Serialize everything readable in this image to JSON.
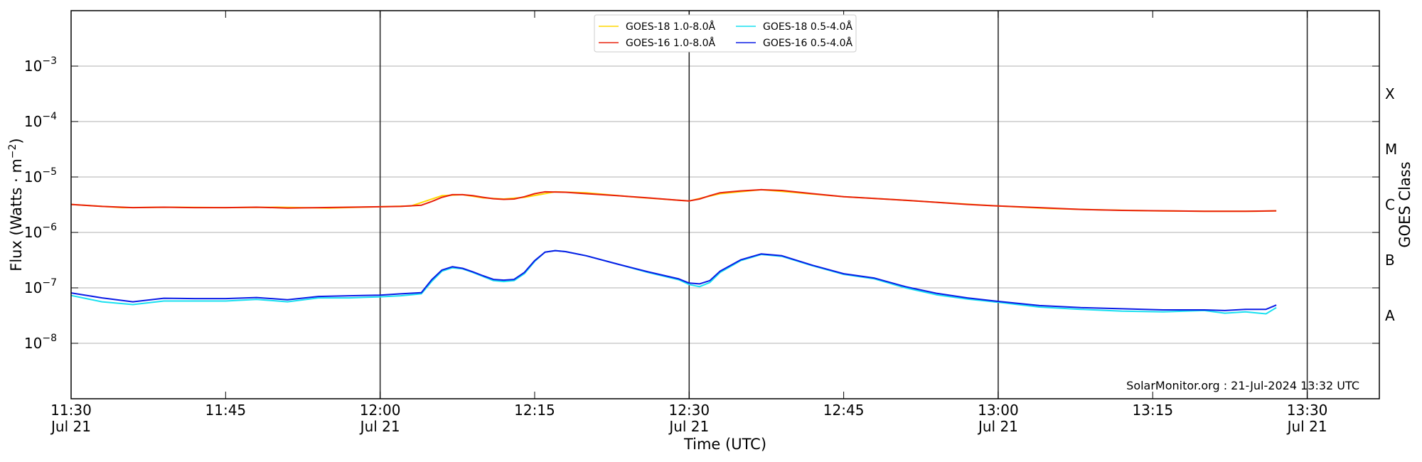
{
  "chart_data": {
    "type": "line",
    "title": "",
    "xlabel": "Time (UTC)",
    "ylabel": "Flux (Watts · m⁻²)",
    "y2label": "GOES Class",
    "yscale": "log",
    "ylim": [
      1e-09,
      0.01
    ],
    "xlim": [
      "2024-07-21 11:30",
      "2024-07-21 13:37"
    ],
    "grid": "horizontal at decades",
    "legend_position": "top-center",
    "credit": "SolarMonitor.org : 21-Jul-2024 13:32 UTC",
    "x_ticks": [
      {
        "time": "11:30",
        "line1": "11:30",
        "line2": "Jul 21"
      },
      {
        "time": "11:45",
        "line1": "11:45",
        "line2": ""
      },
      {
        "time": "12:00",
        "line1": "12:00",
        "line2": "Jul 21"
      },
      {
        "time": "12:15",
        "line1": "12:15",
        "line2": ""
      },
      {
        "time": "12:30",
        "line1": "12:30",
        "line2": "Jul 21"
      },
      {
        "time": "12:45",
        "line1": "12:45",
        "line2": ""
      },
      {
        "time": "13:00",
        "line1": "13:00",
        "line2": "Jul 21"
      },
      {
        "time": "13:15",
        "line1": "13:15",
        "line2": ""
      },
      {
        "time": "13:30",
        "line1": "13:30",
        "line2": "Jul 21"
      }
    ],
    "vertical_lines": [
      "12:00",
      "12:30",
      "13:00",
      "13:30"
    ],
    "y_ticks": [
      {
        "value": 0.001,
        "base": "10",
        "exp": "−3"
      },
      {
        "value": 0.0001,
        "base": "10",
        "exp": "−4"
      },
      {
        "value": 1e-05,
        "base": "10",
        "exp": "−5"
      },
      {
        "value": 1e-06,
        "base": "10",
        "exp": "−6"
      },
      {
        "value": 1e-07,
        "base": "10",
        "exp": "−7"
      },
      {
        "value": 1e-08,
        "base": "10",
        "exp": "−8"
      }
    ],
    "goes_classes": [
      {
        "label": "X",
        "value": 0.000316
      },
      {
        "label": "M",
        "value": 3.16e-05
      },
      {
        "label": "C",
        "value": 3.16e-06
      },
      {
        "label": "B",
        "value": 3.16e-07
      },
      {
        "label": "A",
        "value": 3.16e-08
      }
    ],
    "series": [
      {
        "name": "GOES-18 1.0-8.0Å",
        "color": "#FFD700",
        "x": [
          "11:30",
          "11:35",
          "11:40",
          "11:45",
          "11:50",
          "11:55",
          "12:00",
          "12:03",
          "12:06",
          "12:08",
          "12:10",
          "12:12",
          "12:14",
          "12:17",
          "12:20",
          "12:25",
          "12:30",
          "12:33",
          "12:37",
          "12:40",
          "12:45",
          "12:50",
          "12:55",
          "13:00",
          "13:05",
          "13:10",
          "13:15",
          "13:20",
          "13:25",
          "13:27"
        ],
        "values": [
          3.2e-06,
          2.8e-06,
          2.85e-06,
          2.8e-06,
          2.85e-06,
          2.75e-06,
          2.9e-06,
          3e-06,
          4.6e-06,
          4.8e-06,
          4.2e-06,
          4e-06,
          4.3e-06,
          5.4e-06,
          5.2e-06,
          4.3e-06,
          3.7e-06,
          5e-06,
          5.9e-06,
          5.3e-06,
          4.4e-06,
          3.9e-06,
          3.4e-06,
          3e-06,
          2.7e-06,
          2.55e-06,
          2.45e-06,
          2.4e-06,
          2.4e-06,
          2.45e-06
        ]
      },
      {
        "name": "GOES-16 1.0-8.0Å",
        "color": "#E8200C",
        "x": [
          "11:30",
          "11:33",
          "11:36",
          "11:39",
          "11:42",
          "11:45",
          "11:48",
          "11:51",
          "11:54",
          "11:57",
          "12:00",
          "12:02",
          "12:04",
          "12:05",
          "12:06",
          "12:07",
          "12:08",
          "12:09",
          "12:10",
          "12:11",
          "12:12",
          "12:13",
          "12:14",
          "12:15",
          "12:16",
          "12:18",
          "12:20",
          "12:23",
          "12:26",
          "12:29",
          "12:30",
          "12:31",
          "12:32",
          "12:33",
          "12:35",
          "12:37",
          "12:39",
          "12:42",
          "12:45",
          "12:48",
          "12:51",
          "12:54",
          "12:57",
          "13:00",
          "13:04",
          "13:08",
          "13:12",
          "13:16",
          "13:20",
          "13:24",
          "13:27"
        ],
        "values": [
          3.2e-06,
          2.95e-06,
          2.8e-06,
          2.85e-06,
          2.8e-06,
          2.8e-06,
          2.85e-06,
          2.75e-06,
          2.8e-06,
          2.85e-06,
          2.9e-06,
          2.95e-06,
          3.1e-06,
          3.6e-06,
          4.3e-06,
          4.8e-06,
          4.8e-06,
          4.6e-06,
          4.3e-06,
          4.05e-06,
          3.95e-06,
          4e-06,
          4.4e-06,
          5e-06,
          5.4e-06,
          5.3e-06,
          5e-06,
          4.6e-06,
          4.2e-06,
          3.8e-06,
          3.7e-06,
          4e-06,
          4.6e-06,
          5.2e-06,
          5.6e-06,
          5.9e-06,
          5.7e-06,
          5e-06,
          4.4e-06,
          4.1e-06,
          3.8e-06,
          3.5e-06,
          3.2e-06,
          3e-06,
          2.8e-06,
          2.6e-06,
          2.5e-06,
          2.45e-06,
          2.4e-06,
          2.4e-06,
          2.45e-06
        ]
      },
      {
        "name": "GOES-18 0.5-4.0Å",
        "color": "#19E0F0",
        "x": [
          "11:30",
          "11:33",
          "11:36",
          "11:39",
          "11:42",
          "11:45",
          "11:48",
          "11:51",
          "11:54",
          "11:57",
          "12:00",
          "12:02",
          "12:04",
          "12:05",
          "12:06",
          "12:07",
          "12:08",
          "12:09",
          "12:10",
          "12:11",
          "12:12",
          "12:13",
          "12:14",
          "12:15",
          "12:16",
          "12:17",
          "12:18",
          "12:20",
          "12:23",
          "12:26",
          "12:29",
          "12:30",
          "12:31",
          "12:32",
          "12:33",
          "12:35",
          "12:37",
          "12:39",
          "12:42",
          "12:45",
          "12:48",
          "12:51",
          "12:54",
          "12:57",
          "13:00",
          "13:04",
          "13:08",
          "13:12",
          "13:16",
          "13:20",
          "13:22",
          "13:24",
          "13:26",
          "13:27"
        ],
        "values": [
          7.3e-08,
          5.6e-08,
          5e-08,
          5.8e-08,
          5.8e-08,
          5.8e-08,
          6.2e-08,
          5.6e-08,
          6.6e-08,
          6.6e-08,
          6.9e-08,
          7.2e-08,
          7.8e-08,
          1.3e-07,
          2e-07,
          2.3e-07,
          2.2e-07,
          1.9e-07,
          1.6e-07,
          1.35e-07,
          1.3e-07,
          1.35e-07,
          1.8e-07,
          3e-07,
          4.4e-07,
          4.7e-07,
          4.5e-07,
          3.8e-07,
          2.7e-07,
          1.9e-07,
          1.4e-07,
          1.15e-07,
          1.05e-07,
          1.25e-07,
          1.9e-07,
          3.1e-07,
          4e-07,
          3.7e-07,
          2.5e-07,
          1.75e-07,
          1.45e-07,
          1e-07,
          7.5e-08,
          6.3e-08,
          5.5e-08,
          4.5e-08,
          4.1e-08,
          3.8e-08,
          3.7e-08,
          3.9e-08,
          3.5e-08,
          3.7e-08,
          3.4e-08,
          4.4e-08
        ]
      },
      {
        "name": "GOES-16 0.5-4.0Å",
        "color": "#0A1BE6",
        "x": [
          "11:30",
          "11:33",
          "11:36",
          "11:39",
          "11:42",
          "11:45",
          "11:48",
          "11:51",
          "11:54",
          "11:57",
          "12:00",
          "12:02",
          "12:04",
          "12:05",
          "12:06",
          "12:07",
          "12:08",
          "12:09",
          "12:10",
          "12:11",
          "12:12",
          "12:13",
          "12:14",
          "12:15",
          "12:16",
          "12:17",
          "12:18",
          "12:20",
          "12:23",
          "12:26",
          "12:29",
          "12:30",
          "12:31",
          "12:32",
          "12:33",
          "12:35",
          "12:37",
          "12:39",
          "12:42",
          "12:45",
          "12:48",
          "12:51",
          "12:54",
          "12:57",
          "13:00",
          "13:04",
          "13:08",
          "13:12",
          "13:16",
          "13:20",
          "13:22",
          "13:24",
          "13:26",
          "13:27"
        ],
        "values": [
          8.1e-08,
          6.6e-08,
          5.6e-08,
          6.5e-08,
          6.4e-08,
          6.4e-08,
          6.7e-08,
          6.1e-08,
          7e-08,
          7.2e-08,
          7.4e-08,
          7.8e-08,
          8.2e-08,
          1.4e-07,
          2.1e-07,
          2.4e-07,
          2.25e-07,
          1.95e-07,
          1.65e-07,
          1.42e-07,
          1.38e-07,
          1.42e-07,
          1.9e-07,
          3.1e-07,
          4.4e-07,
          4.7e-07,
          4.5e-07,
          3.8e-07,
          2.7e-07,
          1.95e-07,
          1.45e-07,
          1.22e-07,
          1.18e-07,
          1.35e-07,
          2e-07,
          3.2e-07,
          4.1e-07,
          3.8e-07,
          2.55e-07,
          1.8e-07,
          1.5e-07,
          1.05e-07,
          8e-08,
          6.6e-08,
          5.7e-08,
          4.8e-08,
          4.4e-08,
          4.2e-08,
          4e-08,
          4e-08,
          3.9e-08,
          4.1e-08,
          4.1e-08,
          4.9e-08
        ]
      }
    ]
  }
}
